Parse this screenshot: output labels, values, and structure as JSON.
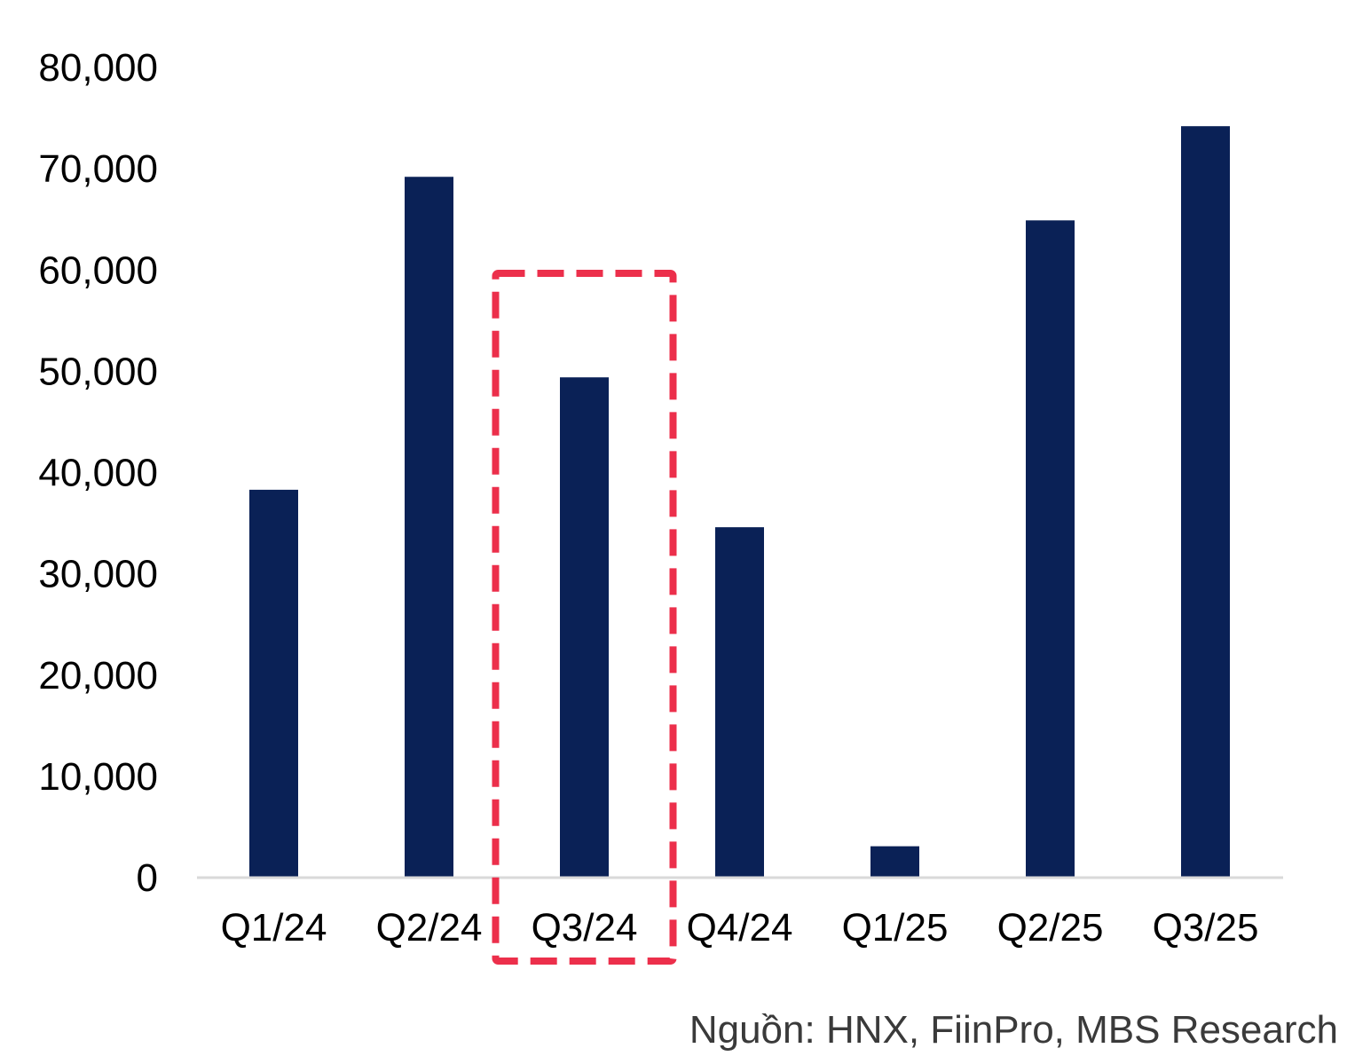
{
  "chart_data": {
    "type": "bar",
    "categories": [
      "Q1/24",
      "Q2/24",
      "Q3/24",
      "Q4/24",
      "Q1/25",
      "Q2/25",
      "Q3/25"
    ],
    "values": [
      38300,
      69200,
      49400,
      34600,
      3100,
      64900,
      74200
    ],
    "title": "",
    "xlabel": "",
    "ylabel": "",
    "ylim": [
      0,
      80000
    ],
    "yticks": [
      "0",
      "10,000",
      "20,000",
      "30,000",
      "40,000",
      "50,000",
      "60,000",
      "70,000",
      "80,000"
    ],
    "grid": false,
    "highlight": {
      "category": "Q3/24",
      "style": "dashed-box"
    }
  },
  "colors": {
    "bar": "#0a2156",
    "axis_line": "#d9d9d9",
    "highlight": "#ec2f4b",
    "source_text": "#3a3a3a"
  },
  "source": "Nguồn: HNX, FiinPro, MBS Research"
}
